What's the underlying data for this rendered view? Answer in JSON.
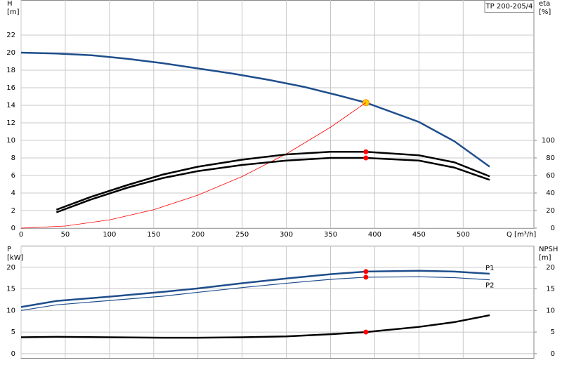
{
  "chart_data": [
    {
      "type": "line",
      "title": "TP 200-205/4",
      "ylabel": "H",
      "yunit": "[m]",
      "y2label": "eta",
      "y2unit": "[%]",
      "xlabel": "Q [m³/h]",
      "xlim": [
        0,
        580
      ],
      "xticks": [
        0,
        50,
        100,
        150,
        200,
        250,
        300,
        350,
        400,
        450,
        500
      ],
      "ylim": [
        0,
        26
      ],
      "yticks": [
        0,
        2,
        4,
        6,
        8,
        10,
        12,
        14,
        16,
        18,
        20,
        22
      ],
      "y2lim": [
        0,
        260
      ],
      "y2ticks": [
        0,
        20,
        40,
        60,
        80,
        100
      ],
      "grid": true,
      "operating_point_q": 390,
      "series_labels": false,
      "series": [
        {
          "color": "#1f4e8c",
          "width": 2.5,
          "point_color": "#ffcc00",
          "x": [
            0,
            40,
            80,
            120,
            160,
            200,
            240,
            280,
            320,
            360,
            390,
            450,
            490,
            530
          ],
          "values": [
            20,
            19.9,
            19.7,
            19.3,
            18.8,
            18.2,
            17.6,
            16.9,
            16.1,
            15.1,
            14.3,
            12.1,
            9.9,
            7.0
          ]
        },
        {
          "color": "#ff0000",
          "width": 0.8,
          "x": [
            0,
            50,
            100,
            150,
            200,
            250,
            300,
            350,
            390
          ],
          "values": [
            0,
            0.24,
            0.94,
            2.1,
            3.76,
            5.88,
            8.46,
            11.5,
            14.3
          ]
        },
        {
          "color": "#000000",
          "width": 2.5,
          "axis": "y2",
          "point_color": "#ff0000",
          "x": [
            40,
            80,
            120,
            160,
            200,
            250,
            300,
            350,
            390,
            450,
            490,
            530
          ],
          "values": [
            21,
            36,
            49,
            61,
            70,
            78,
            84,
            87,
            87,
            83,
            75,
            59
          ]
        },
        {
          "color": "#000000",
          "width": 2.5,
          "axis": "y2",
          "point_color": "#ff0000",
          "x": [
            40,
            80,
            120,
            160,
            200,
            250,
            300,
            350,
            390,
            450,
            490,
            530
          ],
          "values": [
            18,
            33,
            46,
            57,
            65,
            72,
            77,
            80,
            80,
            77,
            69,
            55
          ]
        }
      ]
    },
    {
      "type": "line",
      "ylabel": "P",
      "yunit": "[kW]",
      "y2label": "NPSH",
      "y2unit": "[m]",
      "xlim": [
        0,
        580
      ],
      "xticks": [
        0,
        50,
        100,
        150,
        200,
        250,
        300,
        350,
        400,
        450,
        500
      ],
      "ylim": [
        -1,
        25
      ],
      "yticks": [
        0,
        5,
        10,
        15,
        20
      ],
      "y2lim": [
        -1,
        25
      ],
      "y2ticks": [
        0,
        5,
        10,
        15,
        20
      ],
      "grid": true,
      "operating_point_q": 390,
      "series_labels": true,
      "series": [
        {
          "name": "P1",
          "color": "#1f4e8c",
          "width": 2.5,
          "point_color": "#ff0000",
          "x": [
            0,
            40,
            100,
            160,
            200,
            250,
            300,
            350,
            390,
            450,
            490,
            530
          ],
          "values": [
            10.8,
            12.2,
            13.2,
            14.3,
            15.1,
            16.3,
            17.4,
            18.4,
            19.0,
            19.2,
            19.0,
            18.5
          ]
        },
        {
          "name": "P2",
          "color": "#1f4e8c",
          "width": 1.2,
          "point_color": "#ff0000",
          "x": [
            0,
            40,
            100,
            160,
            200,
            250,
            300,
            350,
            390,
            450,
            490,
            530
          ],
          "values": [
            10.0,
            11.3,
            12.3,
            13.3,
            14.2,
            15.3,
            16.3,
            17.2,
            17.7,
            17.8,
            17.6,
            17.1
          ]
        },
        {
          "color": "#000000",
          "width": 2.5,
          "axis": "y2",
          "point_color": "#ff0000",
          "x": [
            0,
            40,
            100,
            160,
            200,
            250,
            300,
            350,
            390,
            450,
            490,
            530
          ],
          "values": [
            3.8,
            3.9,
            3.8,
            3.7,
            3.7,
            3.8,
            4.0,
            4.5,
            5.0,
            6.2,
            7.3,
            8.9
          ]
        }
      ]
    }
  ]
}
